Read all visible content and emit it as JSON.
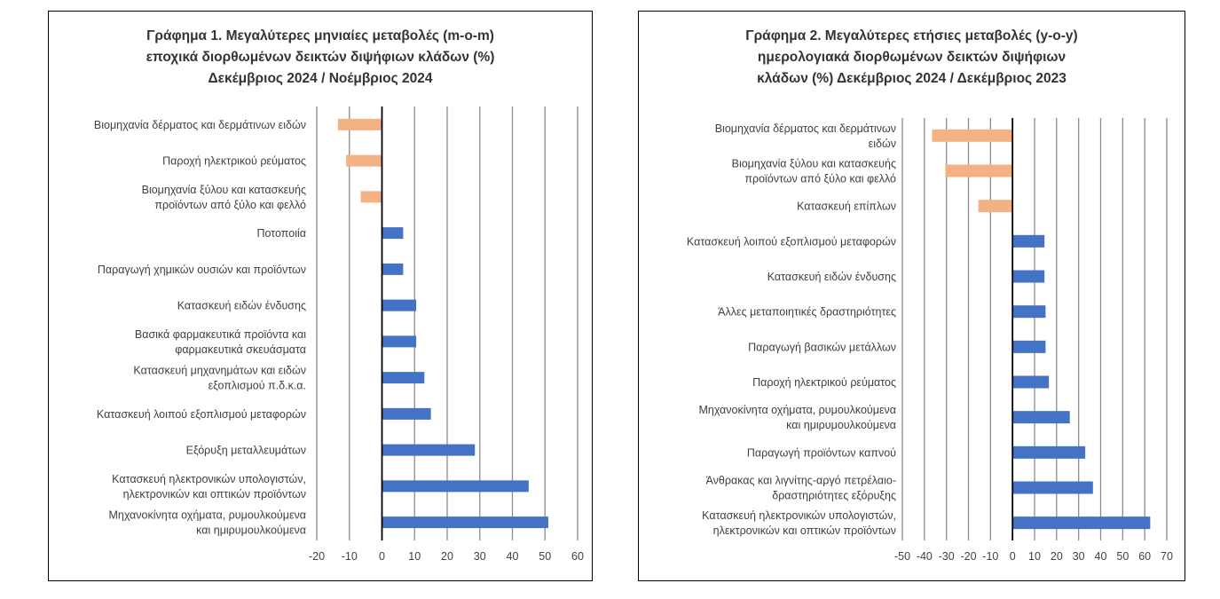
{
  "chart_data": [
    {
      "type": "bar",
      "orientation": "horizontal",
      "title_lines": [
        "Γράφημα 1. Μεγαλύτερες μηνιαίες μεταβολές (m-o-m)",
        "εποχικά διορθωμένων δεικτών διψήφιων κλάδων (%)",
        "Δεκέμβριος 2024 / Νοέμβριος 2024"
      ],
      "categories": [
        [
          "Βιομηχανία δέρματος και δερμάτινων ειδών"
        ],
        [
          "Παροχή ηλεκτρικού ρεύματος"
        ],
        [
          "Βιομηχανία ξύλου και κατασκευής",
          "προϊόντων από ξύλο και φελλό"
        ],
        [
          "Ποτοποιία"
        ],
        [
          "Παραγωγή χημικών ουσιών και προϊόντων"
        ],
        [
          "Κατασκευή ειδών ένδυσης"
        ],
        [
          "Βασικά φαρμακευτικά προϊόντα και",
          "φαρμακευτικά σκευάσματα"
        ],
        [
          "Κατασκευή μηχανημάτων και ειδών",
          "εξοπλισμού π.δ.κ.α."
        ],
        [
          "Κατασκευή λοιπού εξοπλισμού μεταφορών"
        ],
        [
          "Εξόρυξη μεταλλευμάτων"
        ],
        [
          "Κατασκευή ηλεκτρονικών υπολογιστών,",
          "ηλεκτρονικών και οπτικών προϊόντων"
        ],
        [
          "Μηχανοκίνητα οχήματα, ρυμουλκούμενα",
          "και ημιρυμουλκούμενα"
        ]
      ],
      "values": [
        -13.5,
        -11.0,
        -6.5,
        6.5,
        6.5,
        10.5,
        10.5,
        13.0,
        15.0,
        28.5,
        45.0,
        51.0
      ],
      "xlim": [
        -20,
        60
      ],
      "xticks": [
        -20,
        -10,
        0,
        10,
        20,
        30,
        40,
        50,
        60
      ],
      "grid": true,
      "colors": {
        "negative": "#F4B183",
        "positive": "#4472C4"
      }
    },
    {
      "type": "bar",
      "orientation": "horizontal",
      "title_lines": [
        "Γράφημα 2. Μεγαλύτερες ετήσιες μεταβολές (y-o-y)",
        "ημερολογιακά διορθωμένων δεικτών διψήφιων",
        "κλάδων (%) Δεκέμβριος 2024 / Δεκέμβριος  2023"
      ],
      "categories": [
        [
          "Βιομηχανία δέρματος και δερμάτινων",
          "ειδών"
        ],
        [
          "Βιομηχανία ξύλου και κατασκευής",
          "προϊόντων από ξύλο και φελλό"
        ],
        [
          "Κατασκευή επίπλων"
        ],
        [
          "Κατασκευή λοιπού εξοπλισμού μεταφορών"
        ],
        [
          "Κατασκευή ειδών ένδυσης"
        ],
        [
          "Άλλες μεταποιητικές δραστηριότητες"
        ],
        [
          "Παραγωγή βασικών μετάλλων"
        ],
        [
          "Παροχή ηλεκτρικού ρεύματος"
        ],
        [
          "Μηχανοκίνητα οχήματα, ρυμουλκούμενα",
          "και ημιρυμουλκούμενα"
        ],
        [
          "Παραγωγή προϊόντων καπνού"
        ],
        [
          "Άνθρακας και λιγνίτης-αργό πετρέλαιο-",
          "δραστηριότητες εξόρυξης"
        ],
        [
          "Κατασκευή ηλεκτρονικών υπολογιστών,",
          "ηλεκτρονικών και οπτικών προϊόντων"
        ]
      ],
      "values": [
        -36.5,
        -30.5,
        -15.5,
        14.5,
        14.5,
        15.0,
        15.0,
        16.5,
        26.0,
        33.0,
        36.5,
        62.5
      ],
      "xlim": [
        -50,
        70
      ],
      "xticks": [
        -50,
        -40,
        -30,
        -20,
        -10,
        0,
        10,
        20,
        30,
        40,
        50,
        60,
        70
      ],
      "grid": true,
      "colors": {
        "negative": "#F4B183",
        "positive": "#4472C4"
      }
    }
  ]
}
